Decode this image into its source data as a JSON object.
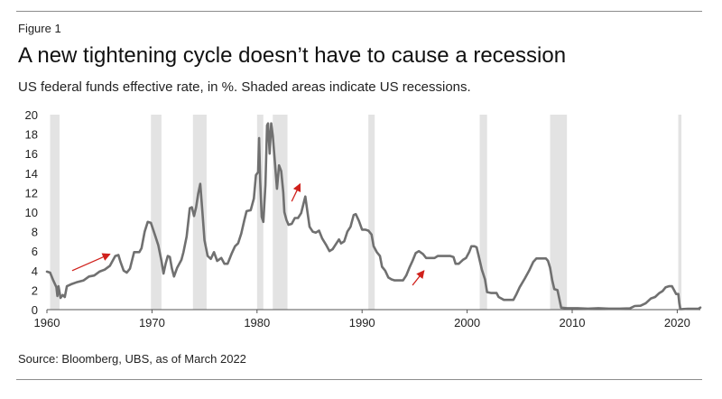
{
  "figure_label": "Figure 1",
  "title": "A new tightening cycle doesn’t have to cause a recession",
  "subtitle": "US federal funds effective rate, in %. Shaded areas indicate US recessions.",
  "source": "Source: Bloomberg, UBS, as of March 2022",
  "colors": {
    "line": "#707070",
    "recession": "#e3e3e3",
    "arrow": "#d0211c",
    "axis": "#555555"
  },
  "chart_data": {
    "type": "line",
    "title": "A new tightening cycle doesn’t have to cause a recession",
    "ylabel": "US federal funds effective rate, in %",
    "xlim": [
      1960,
      2022.2
    ],
    "ylim": [
      0,
      20
    ],
    "x_ticks": [
      1960,
      1970,
      1980,
      1990,
      2000,
      2010,
      2020
    ],
    "y_ticks": [
      0,
      2,
      4,
      6,
      8,
      10,
      12,
      14,
      16,
      18,
      20
    ],
    "recessions": [
      [
        1960.3,
        1961.2
      ],
      [
        1969.9,
        1970.9
      ],
      [
        1973.9,
        1975.2
      ],
      [
        1980.0,
        1980.6
      ],
      [
        1981.5,
        1982.9
      ],
      [
        1990.6,
        1991.2
      ],
      [
        2001.2,
        2001.9
      ],
      [
        2007.9,
        2009.5
      ],
      [
        2020.1,
        2020.4
      ]
    ],
    "series": [
      {
        "name": "Fed funds effective rate",
        "points": [
          [
            1960.0,
            3.9
          ],
          [
            1960.3,
            3.8
          ],
          [
            1960.6,
            3.0
          ],
          [
            1960.9,
            2.3
          ],
          [
            1961.0,
            1.4
          ],
          [
            1961.1,
            2.4
          ],
          [
            1961.3,
            1.2
          ],
          [
            1961.5,
            1.5
          ],
          [
            1961.7,
            1.3
          ],
          [
            1961.9,
            2.4
          ],
          [
            1962.3,
            2.6
          ],
          [
            1962.8,
            2.8
          ],
          [
            1963.5,
            3.0
          ],
          [
            1964.0,
            3.4
          ],
          [
            1964.5,
            3.5
          ],
          [
            1965.0,
            3.9
          ],
          [
            1965.5,
            4.1
          ],
          [
            1966.0,
            4.5
          ],
          [
            1966.5,
            5.5
          ],
          [
            1966.8,
            5.6
          ],
          [
            1967.0,
            4.9
          ],
          [
            1967.3,
            4.0
          ],
          [
            1967.6,
            3.8
          ],
          [
            1967.9,
            4.2
          ],
          [
            1968.3,
            5.9
          ],
          [
            1968.8,
            5.9
          ],
          [
            1969.0,
            6.3
          ],
          [
            1969.3,
            8.0
          ],
          [
            1969.6,
            9.0
          ],
          [
            1969.9,
            8.9
          ],
          [
            1970.3,
            7.6
          ],
          [
            1970.6,
            6.6
          ],
          [
            1970.9,
            5.0
          ],
          [
            1971.1,
            3.7
          ],
          [
            1971.3,
            4.7
          ],
          [
            1971.5,
            5.5
          ],
          [
            1971.7,
            5.4
          ],
          [
            1971.9,
            4.2
          ],
          [
            1972.1,
            3.4
          ],
          [
            1972.4,
            4.3
          ],
          [
            1972.8,
            5.1
          ],
          [
            1973.0,
            5.9
          ],
          [
            1973.3,
            7.5
          ],
          [
            1973.6,
            10.4
          ],
          [
            1973.8,
            10.5
          ],
          [
            1974.0,
            9.6
          ],
          [
            1974.2,
            10.5
          ],
          [
            1974.4,
            11.9
          ],
          [
            1974.6,
            12.9
          ],
          [
            1974.8,
            10.0
          ],
          [
            1975.0,
            7.1
          ],
          [
            1975.3,
            5.5
          ],
          [
            1975.6,
            5.2
          ],
          [
            1975.9,
            5.9
          ],
          [
            1976.2,
            5.0
          ],
          [
            1976.6,
            5.3
          ],
          [
            1976.9,
            4.7
          ],
          [
            1977.2,
            4.7
          ],
          [
            1977.6,
            5.8
          ],
          [
            1977.9,
            6.5
          ],
          [
            1978.2,
            6.8
          ],
          [
            1978.5,
            7.8
          ],
          [
            1978.8,
            9.2
          ],
          [
            1979.0,
            10.1
          ],
          [
            1979.4,
            10.2
          ],
          [
            1979.7,
            11.4
          ],
          [
            1979.9,
            13.8
          ],
          [
            1980.1,
            14.1
          ],
          [
            1980.2,
            17.6
          ],
          [
            1980.3,
            13.2
          ],
          [
            1980.45,
            9.5
          ],
          [
            1980.6,
            9.0
          ],
          [
            1980.8,
            12.8
          ],
          [
            1980.95,
            18.9
          ],
          [
            1981.05,
            19.1
          ],
          [
            1981.2,
            16.0
          ],
          [
            1981.35,
            19.1
          ],
          [
            1981.5,
            17.8
          ],
          [
            1981.7,
            15.1
          ],
          [
            1981.9,
            12.4
          ],
          [
            1982.1,
            14.8
          ],
          [
            1982.3,
            14.2
          ],
          [
            1982.5,
            12.0
          ],
          [
            1982.6,
            10.0
          ],
          [
            1982.8,
            9.2
          ],
          [
            1983.0,
            8.7
          ],
          [
            1983.3,
            8.8
          ],
          [
            1983.6,
            9.4
          ],
          [
            1983.9,
            9.4
          ],
          [
            1984.2,
            9.9
          ],
          [
            1984.5,
            11.2
          ],
          [
            1984.6,
            11.6
          ],
          [
            1984.8,
            10.0
          ],
          [
            1985.0,
            8.5
          ],
          [
            1985.3,
            8.0
          ],
          [
            1985.6,
            7.9
          ],
          [
            1985.9,
            8.1
          ],
          [
            1986.2,
            7.3
          ],
          [
            1986.6,
            6.6
          ],
          [
            1986.9,
            6.0
          ],
          [
            1987.2,
            6.2
          ],
          [
            1987.5,
            6.7
          ],
          [
            1987.8,
            7.2
          ],
          [
            1988.0,
            6.8
          ],
          [
            1988.3,
            7.0
          ],
          [
            1988.6,
            8.0
          ],
          [
            1988.9,
            8.5
          ],
          [
            1989.2,
            9.7
          ],
          [
            1989.4,
            9.8
          ],
          [
            1989.7,
            9.1
          ],
          [
            1990.0,
            8.2
          ],
          [
            1990.3,
            8.2
          ],
          [
            1990.6,
            8.1
          ],
          [
            1990.9,
            7.7
          ],
          [
            1991.1,
            6.5
          ],
          [
            1991.4,
            5.9
          ],
          [
            1991.7,
            5.5
          ],
          [
            1991.9,
            4.4
          ],
          [
            1992.2,
            4.0
          ],
          [
            1992.5,
            3.3
          ],
          [
            1992.8,
            3.1
          ],
          [
            1993.1,
            3.0
          ],
          [
            1993.5,
            3.0
          ],
          [
            1993.9,
            3.0
          ],
          [
            1994.2,
            3.5
          ],
          [
            1994.5,
            4.3
          ],
          [
            1994.8,
            5.0
          ],
          [
            1995.1,
            5.8
          ],
          [
            1995.4,
            6.0
          ],
          [
            1995.8,
            5.7
          ],
          [
            1996.1,
            5.3
          ],
          [
            1996.5,
            5.3
          ],
          [
            1996.9,
            5.3
          ],
          [
            1997.2,
            5.5
          ],
          [
            1997.6,
            5.5
          ],
          [
            1998.0,
            5.5
          ],
          [
            1998.4,
            5.5
          ],
          [
            1998.7,
            5.4
          ],
          [
            1998.9,
            4.7
          ],
          [
            1999.2,
            4.7
          ],
          [
            1999.6,
            5.1
          ],
          [
            1999.9,
            5.3
          ],
          [
            2000.2,
            5.9
          ],
          [
            2000.4,
            6.5
          ],
          [
            2000.7,
            6.5
          ],
          [
            2000.9,
            6.4
          ],
          [
            2001.1,
            5.5
          ],
          [
            2001.4,
            4.1
          ],
          [
            2001.7,
            3.1
          ],
          [
            2001.9,
            1.8
          ],
          [
            2002.3,
            1.7
          ],
          [
            2002.8,
            1.7
          ],
          [
            2003.0,
            1.3
          ],
          [
            2003.5,
            1.0
          ],
          [
            2004.0,
            1.0
          ],
          [
            2004.4,
            1.0
          ],
          [
            2004.7,
            1.6
          ],
          [
            2005.0,
            2.3
          ],
          [
            2005.5,
            3.2
          ],
          [
            2005.9,
            4.0
          ],
          [
            2006.3,
            4.9
          ],
          [
            2006.6,
            5.25
          ],
          [
            2007.0,
            5.25
          ],
          [
            2007.5,
            5.25
          ],
          [
            2007.7,
            5.0
          ],
          [
            2007.9,
            4.3
          ],
          [
            2008.1,
            3.0
          ],
          [
            2008.3,
            2.1
          ],
          [
            2008.6,
            2.0
          ],
          [
            2008.8,
            1.0
          ],
          [
            2008.95,
            0.2
          ],
          [
            2009.5,
            0.15
          ],
          [
            2010.5,
            0.15
          ],
          [
            2011.5,
            0.1
          ],
          [
            2012.5,
            0.15
          ],
          [
            2013.5,
            0.1
          ],
          [
            2014.5,
            0.1
          ],
          [
            2015.5,
            0.13
          ],
          [
            2015.95,
            0.37
          ],
          [
            2016.5,
            0.4
          ],
          [
            2017.0,
            0.66
          ],
          [
            2017.5,
            1.15
          ],
          [
            2017.9,
            1.3
          ],
          [
            2018.3,
            1.7
          ],
          [
            2018.6,
            1.9
          ],
          [
            2018.9,
            2.3
          ],
          [
            2019.2,
            2.4
          ],
          [
            2019.5,
            2.4
          ],
          [
            2019.7,
            2.0
          ],
          [
            2019.9,
            1.6
          ],
          [
            2020.1,
            1.6
          ],
          [
            2020.2,
            0.65
          ],
          [
            2020.3,
            0.05
          ],
          [
            2021.0,
            0.08
          ],
          [
            2022.0,
            0.08
          ],
          [
            2022.2,
            0.2
          ]
        ]
      }
    ],
    "annotations": [
      {
        "type": "arrow",
        "from": [
          1962.4,
          4.0
        ],
        "to": [
          1966.0,
          5.7
        ]
      },
      {
        "type": "arrow",
        "from": [
          1983.3,
          11.1
        ],
        "to": [
          1984.1,
          12.9
        ]
      },
      {
        "type": "arrow",
        "from": [
          1994.8,
          2.5
        ],
        "to": [
          1995.9,
          4.0
        ]
      }
    ]
  }
}
